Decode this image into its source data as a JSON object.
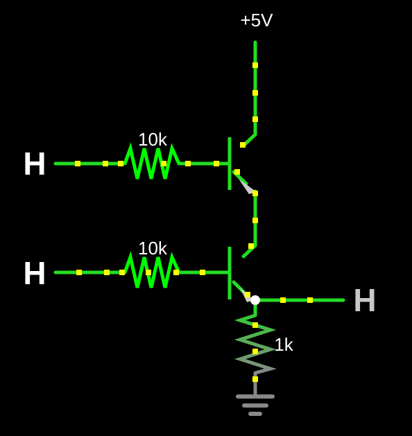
{
  "colors": {
    "background": "#000000",
    "wire_active": "#22dd22",
    "resistor_active": "#00ff00",
    "current_dot": "#ffff00",
    "pulldown_top": "#33cc33",
    "pulldown_bottom": "#888888",
    "ground": "#888888",
    "node": "#ffffff",
    "arrow": "#cccccc",
    "input_label": "#ffffff",
    "output_label": "#c8c8c8"
  },
  "labels": {
    "supply": "+5V",
    "input_a": "H",
    "input_b": "H",
    "output": "H"
  },
  "components": {
    "r1": {
      "value": "10k"
    },
    "r2": {
      "value": "10k"
    },
    "r3": {
      "value": "1k"
    },
    "q1": {
      "type": "NPN transistor"
    },
    "q2": {
      "type": "NPN transistor"
    }
  },
  "icons": {
    "ground": "ground-symbol-icon",
    "transistor": "npn-transistor-icon",
    "resistor": "resistor-zigzag-icon"
  }
}
